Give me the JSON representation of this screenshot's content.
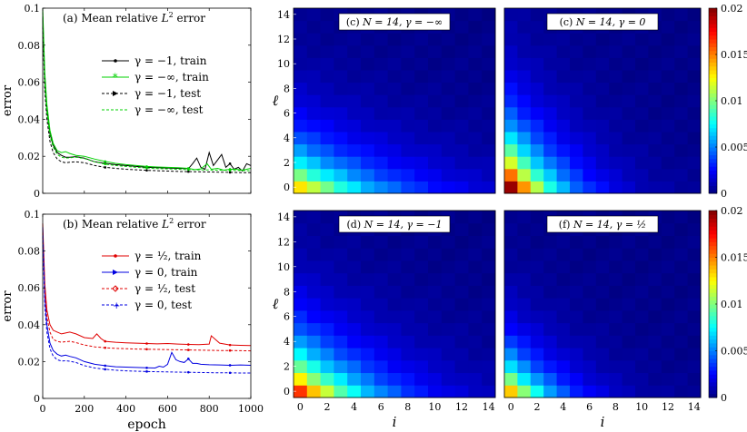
{
  "chart_data": [
    {
      "id": "a",
      "type": "line",
      "title": "(a) Mean relative L² error",
      "title_main": "(a) Mean relative ",
      "title_L": "L",
      "title_sup": "2",
      "title_tail": " error",
      "xlabel": "epoch",
      "ylabel": "error",
      "xlim": [
        0,
        1000
      ],
      "ylim": [
        0,
        0.1
      ],
      "xticks": [
        0,
        200,
        400,
        600,
        800,
        1000
      ],
      "yticks": [
        0,
        0.02,
        0.04,
        0.06,
        0.08,
        0.1
      ],
      "ytick_labels": [
        "0",
        "0.02",
        "0.04",
        "0.06",
        "0.08",
        "0.1"
      ],
      "legend": [
        {
          "label": "γ = −1, train",
          "color": "#000000",
          "dash": "solid",
          "marker": "dot"
        },
        {
          "label": "γ = −∞, train",
          "color": "#00d000",
          "dash": "solid",
          "marker": "star"
        },
        {
          "label": "γ = −1, test",
          "color": "#000000",
          "dash": "dashed",
          "marker": "triangle"
        },
        {
          "label": "γ = −∞, test",
          "color": "#00d000",
          "dash": "dashed",
          "marker": "none"
        }
      ],
      "series": [
        {
          "name": "γ = −1, train",
          "color": "#000000",
          "dash": "solid",
          "x": [
            0,
            10,
            20,
            35,
            50,
            70,
            90,
            110,
            130,
            160,
            200,
            250,
            300,
            350,
            400,
            450,
            500,
            550,
            600,
            650,
            700,
            720,
            740,
            760,
            780,
            800,
            820,
            840,
            860,
            880,
            900,
            920,
            940,
            960,
            980,
            1000
          ],
          "y": [
            0.095,
            0.06,
            0.045,
            0.032,
            0.026,
            0.022,
            0.0205,
            0.0195,
            0.0195,
            0.0198,
            0.019,
            0.017,
            0.0162,
            0.0155,
            0.015,
            0.0145,
            0.014,
            0.0138,
            0.0137,
            0.0135,
            0.0133,
            0.016,
            0.019,
            0.014,
            0.013,
            0.022,
            0.015,
            0.018,
            0.021,
            0.014,
            0.016,
            0.013,
            0.014,
            0.012,
            0.016,
            0.015
          ]
        },
        {
          "name": "γ = −∞, train",
          "color": "#00d000",
          "dash": "solid",
          "x": [
            0,
            10,
            20,
            35,
            50,
            70,
            90,
            110,
            130,
            160,
            200,
            250,
            300,
            350,
            400,
            450,
            500,
            550,
            600,
            650,
            700,
            730,
            760,
            790,
            810,
            840,
            870,
            900,
            930,
            960,
            1000
          ],
          "y": [
            0.1,
            0.065,
            0.048,
            0.034,
            0.027,
            0.023,
            0.022,
            0.0225,
            0.0215,
            0.0205,
            0.02,
            0.0185,
            0.0172,
            0.0162,
            0.0155,
            0.015,
            0.0145,
            0.0142,
            0.014,
            0.0138,
            0.0135,
            0.0128,
            0.0132,
            0.016,
            0.013,
            0.0135,
            0.0125,
            0.013,
            0.013,
            0.0125,
            0.0135
          ]
        },
        {
          "name": "γ = −1, test",
          "color": "#000000",
          "dash": "dashed",
          "x": [
            0,
            10,
            20,
            35,
            50,
            70,
            90,
            110,
            130,
            160,
            200,
            250,
            300,
            350,
            400,
            450,
            500,
            550,
            600,
            650,
            700,
            750,
            800,
            850,
            900,
            950,
            1000
          ],
          "y": [
            0.09,
            0.055,
            0.04,
            0.028,
            0.022,
            0.0185,
            0.017,
            0.0165,
            0.0168,
            0.017,
            0.0165,
            0.015,
            0.014,
            0.0135,
            0.013,
            0.0127,
            0.0124,
            0.0122,
            0.012,
            0.0118,
            0.0117,
            0.0116,
            0.0115,
            0.0114,
            0.0113,
            0.0112,
            0.0112
          ]
        },
        {
          "name": "γ = −∞, test",
          "color": "#00d000",
          "dash": "dashed",
          "x": [
            0,
            10,
            20,
            35,
            50,
            70,
            90,
            110,
            130,
            160,
            200,
            250,
            300,
            350,
            400,
            450,
            500,
            550,
            600,
            650,
            700,
            750,
            800,
            850,
            900,
            950,
            1000
          ],
          "y": [
            0.098,
            0.06,
            0.044,
            0.031,
            0.025,
            0.021,
            0.0195,
            0.019,
            0.0192,
            0.0195,
            0.0188,
            0.017,
            0.0158,
            0.015,
            0.0145,
            0.014,
            0.0137,
            0.0134,
            0.0132,
            0.013,
            0.0128,
            0.0127,
            0.0126,
            0.0125,
            0.0124,
            0.0123,
            0.0122
          ]
        }
      ]
    },
    {
      "id": "b",
      "type": "line",
      "title": "(b) Mean relative L² error",
      "title_main": "(b) Mean relative ",
      "title_L": "L",
      "title_sup": "2",
      "title_tail": " error",
      "xlabel": "epoch",
      "ylabel": "error",
      "xlim": [
        0,
        1000
      ],
      "ylim": [
        0,
        0.1
      ],
      "xticks": [
        0,
        200,
        400,
        600,
        800,
        1000
      ],
      "xtick_labels": [
        "0",
        "200",
        "400",
        "600",
        "800",
        "1000"
      ],
      "yticks": [
        0,
        0.02,
        0.04,
        0.06,
        0.08,
        0.1
      ],
      "ytick_labels": [
        "0",
        "0.02",
        "0.04",
        "0.06",
        "0.08",
        "0.1"
      ],
      "legend": [
        {
          "label": "γ = ½, train",
          "color": "#e00000",
          "dash": "solid",
          "marker": "dot"
        },
        {
          "label": "γ = 0, train",
          "color": "#0000e0",
          "dash": "solid",
          "marker": "triangle"
        },
        {
          "label": "γ = ½, test",
          "color": "#e00000",
          "dash": "dashed",
          "marker": "diamond"
        },
        {
          "label": "γ = 0, test",
          "color": "#0000e0",
          "dash": "dashed",
          "marker": "plus"
        }
      ],
      "series": [
        {
          "name": "γ = ½, train",
          "color": "#e00000",
          "dash": "solid",
          "x": [
            0,
            10,
            20,
            35,
            50,
            70,
            90,
            110,
            130,
            160,
            200,
            240,
            260,
            280,
            300,
            350,
            400,
            450,
            500,
            550,
            600,
            650,
            700,
            750,
            800,
            810,
            850,
            900,
            950,
            1000
          ],
          "y": [
            0.095,
            0.062,
            0.048,
            0.04,
            0.037,
            0.036,
            0.035,
            0.0355,
            0.036,
            0.035,
            0.033,
            0.0325,
            0.035,
            0.0325,
            0.031,
            0.0305,
            0.0302,
            0.03,
            0.0298,
            0.0296,
            0.0298,
            0.0295,
            0.0293,
            0.0292,
            0.0295,
            0.034,
            0.03,
            0.029,
            0.0288,
            0.0287
          ]
        },
        {
          "name": "γ = 0, train",
          "color": "#0000e0",
          "dash": "solid",
          "x": [
            0,
            10,
            20,
            35,
            50,
            70,
            90,
            110,
            130,
            160,
            200,
            250,
            300,
            350,
            400,
            450,
            500,
            540,
            560,
            580,
            600,
            620,
            640,
            660,
            680,
            700,
            720,
            740,
            760,
            800,
            850,
            900,
            950,
            1000
          ],
          "y": [
            0.093,
            0.055,
            0.04,
            0.03,
            0.026,
            0.024,
            0.023,
            0.0235,
            0.0228,
            0.022,
            0.02,
            0.0185,
            0.0178,
            0.0172,
            0.017,
            0.0168,
            0.0166,
            0.0165,
            0.0175,
            0.017,
            0.0185,
            0.025,
            0.021,
            0.02,
            0.0195,
            0.0215,
            0.019,
            0.019,
            0.0185,
            0.0183,
            0.0182,
            0.018,
            0.0182,
            0.018
          ]
        },
        {
          "name": "γ = ½, test",
          "color": "#e00000",
          "dash": "dashed",
          "x": [
            0,
            10,
            20,
            35,
            50,
            70,
            90,
            110,
            130,
            160,
            200,
            250,
            300,
            350,
            400,
            450,
            500,
            550,
            600,
            650,
            700,
            750,
            800,
            850,
            900,
            950,
            1000
          ],
          "y": [
            0.09,
            0.058,
            0.044,
            0.036,
            0.032,
            0.031,
            0.0305,
            0.0308,
            0.031,
            0.0303,
            0.029,
            0.028,
            0.0275,
            0.0272,
            0.027,
            0.0268,
            0.0267,
            0.0266,
            0.0265,
            0.0264,
            0.0263,
            0.0262,
            0.0261,
            0.026,
            0.026,
            0.0259,
            0.0258
          ]
        },
        {
          "name": "γ = 0, test",
          "color": "#0000e0",
          "dash": "dashed",
          "x": [
            0,
            10,
            20,
            35,
            50,
            70,
            90,
            110,
            130,
            160,
            200,
            250,
            300,
            350,
            400,
            450,
            500,
            550,
            600,
            650,
            700,
            750,
            800,
            850,
            900,
            950,
            1000
          ],
          "y": [
            0.088,
            0.05,
            0.036,
            0.027,
            0.023,
            0.021,
            0.0203,
            0.0205,
            0.0202,
            0.0195,
            0.0178,
            0.0165,
            0.0158,
            0.0153,
            0.015,
            0.0148,
            0.0146,
            0.0145,
            0.0144,
            0.0143,
            0.0142,
            0.0141,
            0.014,
            0.0139,
            0.0139,
            0.0138,
            0.0138
          ]
        }
      ]
    },
    {
      "id": "c1",
      "type": "heatmap",
      "title_pre": "(c) ",
      "title_math": "N = 14, γ = −∞",
      "title": "(c) N = 14, γ = −∞",
      "xlabel": "",
      "ylabel": "ℓ",
      "xlim": [
        0,
        14
      ],
      "ylim": [
        0,
        14
      ],
      "yticks": [
        0,
        2,
        4,
        6,
        8,
        10,
        12,
        14
      ],
      "ytick_labels": [
        "0",
        "2",
        "4",
        "6",
        "8",
        "10",
        "12",
        "14"
      ],
      "vmax": 0.02,
      "decay": {
        "A": 0.013,
        "bi": 0.16,
        "bl": 0.3
      }
    },
    {
      "id": "c2",
      "type": "heatmap",
      "title_pre": "(c) ",
      "title_math": "N = 14, γ = 0",
      "title": "(c) N = 14, γ = 0",
      "xlabel": "",
      "ylabel": "",
      "xlim": [
        0,
        14
      ],
      "ylim": [
        0,
        14
      ],
      "vmax": 0.02,
      "colorbar_ticks": [
        0,
        0.005,
        0.01,
        0.015,
        0.02
      ],
      "colorbar_labels": [
        "0",
        "0.005",
        "0.01",
        "0.015",
        "0.02"
      ],
      "decay": {
        "A": 0.0195,
        "bi": 0.3,
        "bl": 0.26
      }
    },
    {
      "id": "d",
      "type": "heatmap",
      "title_pre": "(d) ",
      "title_math": "N = 14, γ = −1",
      "title": "(d) N = 14, γ = −1",
      "xlabel": "i",
      "ylabel": "ℓ",
      "xlim": [
        0,
        14
      ],
      "ylim": [
        0,
        14
      ],
      "xticks": [
        0,
        2,
        4,
        6,
        8,
        10,
        12,
        14
      ],
      "xtick_labels": [
        "0",
        "2",
        "4",
        "6",
        "8",
        "10",
        "12",
        "14"
      ],
      "yticks": [
        0,
        2,
        4,
        6,
        8,
        10,
        12,
        14
      ],
      "ytick_labels": [
        "0",
        "2",
        "4",
        "6",
        "8",
        "10",
        "12",
        "14"
      ],
      "vmax": 0.02,
      "decay": {
        "A": 0.0165,
        "bi": 0.2,
        "bl": 0.28
      }
    },
    {
      "id": "f",
      "type": "heatmap",
      "title_pre": "(f) ",
      "title_math": "N = 14, γ = ½",
      "title": "(f) N = 14, γ = ½",
      "xlabel": "i",
      "ylabel": "",
      "xlim": [
        0,
        14
      ],
      "ylim": [
        0,
        14
      ],
      "xticks": [
        0,
        2,
        4,
        6,
        8,
        10,
        12,
        14
      ],
      "xtick_labels": [
        "0",
        "2",
        "4",
        "6",
        "8",
        "10",
        "12",
        "14"
      ],
      "vmax": 0.02,
      "colorbar_ticks": [
        0,
        0.005,
        0.01,
        0.015,
        0.02
      ],
      "colorbar_labels": [
        "0",
        "0.005",
        "0.01",
        "0.015",
        "0.02"
      ],
      "decay": {
        "A": 0.0135,
        "bi": 0.3,
        "bl": 0.34
      }
    }
  ]
}
